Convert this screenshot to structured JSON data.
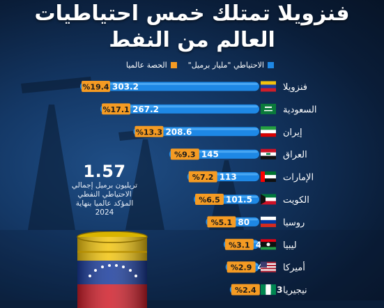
{
  "title_line1": "فنزويلا تمتلك خمس احتياطيات",
  "title_line2": "العالم من النفط",
  "legend": {
    "reserves": "الاحتياطي \"مليار برميل\"",
    "share": "الحصة عالميا"
  },
  "total": {
    "value": "1.57",
    "description": "تريليون برميل إجمالي\nالاحتياطي النفطي\nالمؤكد عالميا بنهاية\n2024"
  },
  "colors": {
    "bar": "#1e88e5",
    "bar_light": "#6ec1ff",
    "share_badge": "#f59b23",
    "background": "#0b1f3a"
  },
  "chart_data": {
    "type": "bar",
    "orientation": "horizontal",
    "categories": [
      "فنزويلا",
      "السعودية",
      "إيران",
      "العراق",
      "الإمارات",
      "الكويت",
      "روسيا",
      "ليبيا",
      "أميركا",
      "نيجيريا"
    ],
    "flags": [
      "venezuela",
      "saudi-arabia",
      "iran",
      "iraq",
      "uae",
      "kuwait",
      "russia",
      "libya",
      "usa",
      "nigeria"
    ],
    "series": [
      {
        "name": "الاحتياطي \"مليار برميل\"",
        "values": [
          303.2,
          267.2,
          208.6,
          145,
          113,
          101.5,
          80,
          48.4,
          45,
          37.3
        ]
      },
      {
        "name": "الحصة عالميا",
        "values": [
          "%19.4",
          "%17.1",
          "%13.3",
          "%9.3",
          "%7.2",
          "%6.5",
          "%5.1",
          "%3.1",
          "%2.9",
          "%2.4"
        ]
      }
    ]
  }
}
